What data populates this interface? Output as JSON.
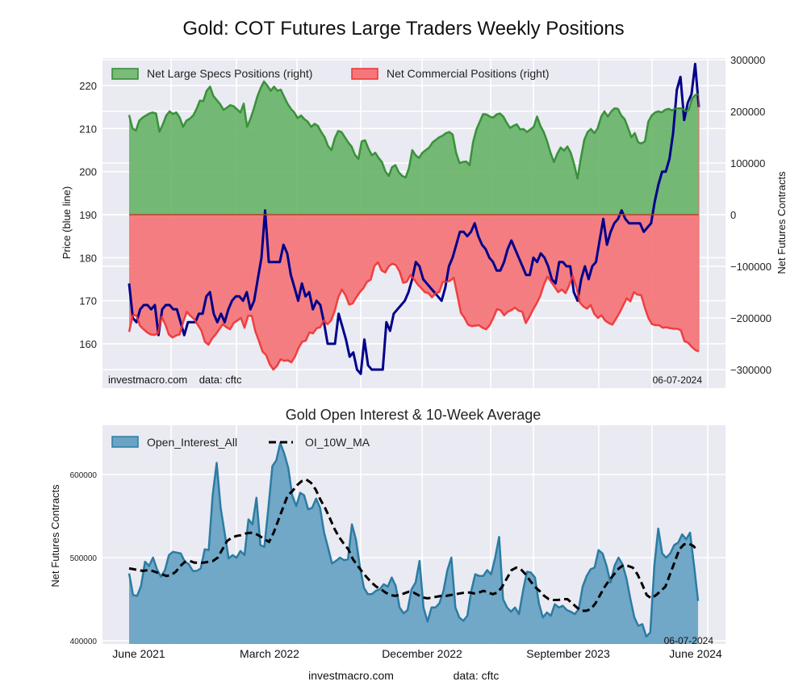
{
  "chart_data": [
    {
      "type": "area",
      "title": "Gold: COT Futures Large Traders Weekly Positions",
      "xlabel": "",
      "ylabel": "Price (blue line)",
      "ylabel_right": "Net Futures Contracts",
      "ylim": [
        151.5,
        228.5
      ],
      "ylim_right": [
        -320000,
        306000
      ],
      "yticks": [
        160,
        170,
        180,
        190,
        200,
        210,
        220
      ],
      "yticks_right": [
        -300000,
        -200000,
        -100000,
        0,
        100000,
        200000,
        300000
      ],
      "ytick_labels_right": [
        "−300000",
        "−200000",
        "−100000",
        "0",
        "100000",
        "200000",
        "300000"
      ],
      "grid": true,
      "legend_position": "top-left",
      "legend": [
        "Net Large Specs Positions (right)",
        "Net Commercial Positions (right)"
      ],
      "annotation_left": "investmacro.com    data: cftc",
      "annotation_right": "06-07-2024",
      "series": [
        {
          "name": "Net Large Specs Positions (right)",
          "axis": "right",
          "color": "#2e8b2e",
          "fill": "#66b266",
          "values": [
            193000,
            167000,
            163000,
            182000,
            188000,
            192000,
            196000,
            198000,
            196000,
            161000,
            175000,
            192000,
            200000,
            195000,
            198000,
            188000,
            170000,
            182000,
            186000,
            192000,
            205000,
            221000,
            220000,
            240000,
            248000,
            230000,
            222000,
            214000,
            203000,
            207000,
            212000,
            210000,
            204000,
            198000,
            215000,
            170000,
            186000,
            206000,
            228000,
            245000,
            258000,
            250000,
            240000,
            248000,
            240000,
            242000,
            228000,
            215000,
            205000,
            198000,
            187000,
            192000,
            185000,
            180000,
            170000,
            176000,
            172000,
            160000,
            150000,
            133000,
            125000,
            148000,
            162000,
            160000,
            150000,
            140000,
            132000,
            116000,
            108000,
            142000,
            144000,
            128000,
            115000,
            120000,
            110000,
            102000,
            84000,
            75000,
            92000,
            96000,
            82000,
            75000,
            72000,
            90000,
            125000,
            115000,
            110000,
            120000,
            125000,
            130000,
            140000,
            145000,
            150000,
            153000,
            158000,
            160000,
            155000,
            120000,
            100000,
            102000,
            103000,
            96000,
            140000,
            165000,
            180000,
            195000,
            194000,
            190000,
            188000,
            194000,
            196000,
            190000,
            178000,
            168000,
            172000,
            175000,
            165000,
            166000,
            160000,
            165000,
            170000,
            190000,
            172000,
            160000,
            142000,
            120000,
            102000,
            118000,
            130000,
            124000,
            132000,
            120000,
            98000,
            70000,
            110000,
            145000,
            160000,
            166000,
            158000,
            168000,
            190000,
            200000,
            190000,
            200000,
            206000,
            205000,
            192000,
            185000,
            168000,
            150000,
            158000,
            140000,
            138000,
            142000,
            180000,
            192000,
            198000,
            200000,
            198000,
            203000,
            205000,
            202000,
            205000,
            206000,
            206000,
            200000,
            203000,
            225000,
            232000,
            233000
          ]
        },
        {
          "name": "Net Commercial Positions (right)",
          "axis": "right",
          "color": "#ee3333",
          "fill": "#f4777a",
          "values": [
            -227000,
            -195000,
            -195000,
            -215000,
            -222000,
            -228000,
            -232000,
            -233000,
            -230000,
            -198000,
            -212000,
            -232000,
            -238000,
            -234000,
            -232000,
            -208000,
            -188000,
            -196000,
            -202000,
            -213000,
            -224000,
            -246000,
            -252000,
            -240000,
            -232000,
            -222000,
            -212000,
            -218000,
            -222000,
            -210000,
            -205000,
            -200000,
            -219000,
            -196000,
            -196000,
            -226000,
            -245000,
            -265000,
            -272000,
            -290000,
            -300000,
            -293000,
            -280000,
            -283000,
            -282000,
            -286000,
            -275000,
            -258000,
            -246000,
            -244000,
            -228000,
            -230000,
            -220000,
            -218000,
            -205000,
            -212000,
            -205000,
            -187000,
            -160000,
            -145000,
            -156000,
            -174000,
            -172000,
            -160000,
            -150000,
            -142000,
            -130000,
            -126000,
            -100000,
            -92000,
            -108000,
            -112000,
            -100000,
            -95000,
            -98000,
            -110000,
            -132000,
            -130000,
            -117000,
            -125000,
            -135000,
            -142000,
            -150000,
            -152000,
            -160000,
            -152000,
            -150000,
            -130000,
            -130000,
            -128000,
            -122000,
            -155000,
            -190000,
            -200000,
            -213000,
            -216000,
            -215000,
            -214000,
            -219000,
            -222000,
            -214000,
            -200000,
            -183000,
            -185000,
            -195000,
            -188000,
            -185000,
            -180000,
            -186000,
            -188000,
            -210000,
            -198000,
            -184000,
            -172000,
            -158000,
            -136000,
            -120000,
            -130000,
            -140000,
            -150000,
            -145000,
            -152000,
            -138000,
            -118000,
            -140000,
            -170000,
            -178000,
            -182000,
            -175000,
            -192000,
            -200000,
            -195000,
            -205000,
            -210000,
            -213000,
            -202000,
            -190000,
            -176000,
            -162000,
            -168000,
            -150000,
            -155000,
            -156000,
            -180000,
            -200000,
            -212000,
            -214000,
            -214000,
            -219000,
            -218000,
            -220000,
            -221000,
            -221000,
            -224000,
            -245000,
            -248000,
            -256000,
            -262000,
            -265000
          ]
        },
        {
          "name": "Price",
          "axis": "left",
          "color": "#00008b",
          "values": [
            174,
            166,
            165,
            168,
            169,
            169,
            168,
            169,
            162,
            168,
            169,
            169,
            168,
            168,
            165,
            162,
            165,
            165,
            165,
            167,
            167,
            171,
            172,
            167,
            165,
            167,
            165,
            168,
            170,
            171,
            171,
            170,
            172,
            168,
            170,
            175,
            180,
            191,
            179,
            179,
            179,
            179,
            183,
            181,
            176,
            173,
            170,
            174,
            171,
            172,
            168,
            170,
            169,
            165,
            160,
            160,
            160,
            167,
            164,
            161,
            157,
            158,
            154,
            153,
            161,
            155,
            154,
            154,
            154,
            154,
            165,
            163,
            167,
            168,
            169,
            170,
            172,
            175,
            179,
            178,
            175,
            174,
            173,
            172,
            171,
            170,
            173,
            178,
            180,
            183,
            186,
            186,
            185,
            186,
            188,
            185,
            183,
            182,
            180,
            179,
            177,
            177,
            179,
            182,
            184,
            182,
            180,
            178,
            176,
            176,
            180,
            179,
            181,
            180,
            178,
            175,
            174,
            179,
            179,
            178,
            178,
            172,
            170,
            175,
            178,
            175,
            178,
            179,
            184,
            189,
            183,
            186,
            188,
            189,
            191,
            189,
            188,
            188,
            188,
            188,
            186,
            187,
            188,
            193,
            197,
            200,
            200,
            203,
            209,
            219,
            222,
            212,
            216,
            218,
            225,
            215
          ]
        }
      ]
    },
    {
      "type": "area",
      "title": "Gold Open Interest & 10-Week Average",
      "xlabel": "",
      "ylabel": "Net Futures Contracts",
      "ylim": [
        398000,
        659000
      ],
      "yticks": [
        400000,
        500000,
        600000
      ],
      "xtick_labels": [
        "June 2021",
        "March 2022",
        "December 2022",
        "September 2023",
        "June 2024"
      ],
      "grid": true,
      "legend_position": "top-left",
      "legend": [
        "Open_Interest_All",
        "OI_10W_MA"
      ],
      "annotation_right": "06-07-2024",
      "series": [
        {
          "name": "Open_Interest_All",
          "color": "#2b7ca3",
          "fill": "#6aa3c4",
          "values": [
            481000,
            455000,
            454000,
            466000,
            495000,
            490000,
            500000,
            486000,
            477000,
            485000,
            503000,
            507000,
            506000,
            505000,
            495000,
            492000,
            484000,
            484000,
            487000,
            510000,
            509000,
            575000,
            614000,
            560000,
            530000,
            499000,
            503000,
            500000,
            508000,
            503000,
            546000,
            540000,
            572000,
            515000,
            513000,
            560000,
            610000,
            617000,
            638000,
            625000,
            608000,
            575000,
            562000,
            578000,
            575000,
            558000,
            560000,
            571000,
            560000,
            530000,
            512000,
            493000,
            496000,
            500000,
            497000,
            498000,
            540000,
            522000,
            490000,
            464000,
            456000,
            456000,
            460000,
            462000,
            468000,
            465000,
            476000,
            466000,
            440000,
            433000,
            437000,
            462000,
            470000,
            496000,
            440000,
            423000,
            440000,
            440000,
            445000,
            460000,
            485000,
            500000,
            440000,
            428000,
            424000,
            430000,
            460000,
            480000,
            478000,
            478000,
            485000,
            480000,
            500000,
            525000,
            450000,
            440000,
            435000,
            440000,
            432000,
            460000,
            483000,
            482000,
            476000,
            445000,
            428000,
            434000,
            430000,
            444000,
            440000,
            442000,
            437000,
            435000,
            432000,
            438000,
            465000,
            478000,
            486000,
            488000,
            509000,
            505000,
            490000,
            470000,
            490000,
            500000,
            492000,
            475000,
            450000,
            428000,
            418000,
            420000,
            405000,
            410000,
            490000,
            535000,
            505000,
            500000,
            505000,
            515000,
            518000,
            528000,
            522000,
            530000,
            490000,
            448000
          ]
        },
        {
          "name": "OI_10W_MA",
          "color": "#000000",
          "dashed": true,
          "values": [
            487000,
            486000,
            485000,
            484000,
            485000,
            484000,
            482000,
            480000,
            478000,
            479000,
            483000,
            490000,
            495000,
            496000,
            494000,
            494000,
            494000,
            495000,
            496000,
            500000,
            510000,
            520000,
            524000,
            526000,
            527000,
            529000,
            530000,
            529000,
            526000,
            522000,
            519000,
            530000,
            545000,
            560000,
            575000,
            580000,
            587000,
            592000,
            594000,
            590000,
            582000,
            570000,
            560000,
            548000,
            535000,
            525000,
            517000,
            510000,
            498000,
            490000,
            483000,
            476000,
            470000,
            465000,
            462000,
            458000,
            455000,
            454000,
            455000,
            457000,
            459000,
            458000,
            455000,
            452000,
            451000,
            452000,
            453000,
            454000,
            454000,
            455000,
            456000,
            457000,
            458000,
            458000,
            457000,
            458000,
            460000,
            458000,
            456000,
            458000,
            465000,
            475000,
            485000,
            488000,
            486000,
            480000,
            472000,
            465000,
            460000,
            454000,
            450000,
            449000,
            449000,
            450000,
            450000,
            445000,
            440000,
            436000,
            436000,
            438000,
            445000,
            455000,
            465000,
            473000,
            480000,
            487000,
            491000,
            490000,
            488000,
            480000,
            468000,
            455000,
            451000,
            455000,
            460000,
            465000,
            480000,
            495000,
            510000,
            516000,
            517000,
            514000,
            508000
          ]
        }
      ]
    }
  ],
  "footer": {
    "site": "investmacro.com",
    "source": "data: cftc"
  }
}
